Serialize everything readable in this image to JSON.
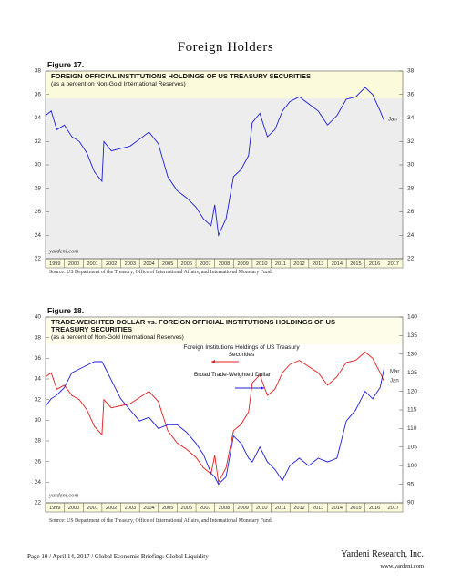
{
  "title": "Foreign Holders",
  "footer": {
    "left": "Page 10 / April 14, 2017 / Global Economic Briefing: Global Liquidity",
    "company": "Yardeni Research, Inc.",
    "url": "www.yardeni.com"
  },
  "chart_data": [
    {
      "type": "line",
      "label": "Figure 17.",
      "title": "FOREIGN OFFICIAL INSTITUTIONS HOLDINGS OF US TREASURY SECURITIES",
      "subtitle": "(as a percent on Non-Gold International Reserves)",
      "x": [
        1999.0,
        1999.3,
        1999.6,
        2000.0,
        2000.4,
        2000.8,
        2001.2,
        2001.6,
        2002.0,
        2002.1,
        2002.5,
        2003.0,
        2003.5,
        2004.0,
        2004.5,
        2005.0,
        2005.5,
        2006.0,
        2006.5,
        2007.0,
        2007.4,
        2007.8,
        2008.0,
        2008.2,
        2008.6,
        2009.0,
        2009.4,
        2009.8,
        2010.0,
        2010.4,
        2010.8,
        2011.2,
        2011.6,
        2012.0,
        2012.5,
        2013.0,
        2013.5,
        2014.0,
        2014.5,
        2015.0,
        2015.5,
        2016.0,
        2016.4,
        2016.8,
        2017.0
      ],
      "series": [
        {
          "color": "#1f1fd6",
          "values": [
            34.2,
            34.6,
            33.0,
            33.4,
            32.4,
            32.0,
            31.0,
            29.4,
            28.6,
            32.0,
            31.2,
            31.4,
            31.6,
            32.2,
            32.8,
            31.8,
            29.0,
            27.8,
            27.2,
            26.4,
            25.4,
            24.8,
            26.6,
            24.0,
            25.4,
            29.0,
            29.6,
            30.8,
            33.6,
            34.4,
            32.4,
            33.0,
            34.6,
            35.4,
            35.8,
            35.2,
            34.6,
            33.4,
            34.2,
            35.6,
            35.8,
            36.6,
            36.0,
            34.6,
            33.8
          ]
        }
      ],
      "xlim": [
        1999,
        2018
      ],
      "xticks": [
        1999,
        2000,
        2001,
        2002,
        2003,
        2004,
        2005,
        2006,
        2007,
        2008,
        2009,
        2010,
        2011,
        2012,
        2013,
        2014,
        2015,
        2016,
        2017
      ],
      "ylim": [
        22,
        38
      ],
      "yticks": [
        22,
        24,
        26,
        28,
        30,
        32,
        34,
        36,
        38
      ],
      "annotations": [
        "yardeni.com",
        "Jan"
      ],
      "source": "Source: US Department of the Treasury, Office of International Affairs, and International Monetary Fund."
    },
    {
      "type": "line",
      "label": "Figure 18.",
      "title": "TRADE-WEIGHTED DOLLAR vs. FOREIGN OFFICIAL INSTITUTIONS HOLDINGS OF US TREASURY SECURITIES",
      "subtitle": "(as a percent of Non-Gold International Reserves)",
      "x": [
        1999.0,
        1999.3,
        1999.6,
        2000.0,
        2000.4,
        2000.8,
        2001.2,
        2001.6,
        2002.0,
        2002.1,
        2002.5,
        2003.0,
        2003.5,
        2004.0,
        2004.5,
        2005.0,
        2005.5,
        2006.0,
        2006.5,
        2007.0,
        2007.4,
        2007.8,
        2008.0,
        2008.2,
        2008.6,
        2009.0,
        2009.4,
        2009.8,
        2010.0,
        2010.4,
        2010.8,
        2011.2,
        2011.6,
        2012.0,
        2012.5,
        2013.0,
        2013.5,
        2014.0,
        2014.5,
        2015.0,
        2015.5,
        2016.0,
        2016.4,
        2016.8,
        2017.0
      ],
      "series": [
        {
          "name": "Foreign Institutions Holdings of US Treasury Securities",
          "color": "#e02020",
          "values": [
            34.2,
            34.6,
            33.0,
            33.4,
            32.4,
            32.0,
            31.0,
            29.4,
            28.6,
            32.0,
            31.2,
            31.4,
            31.6,
            32.2,
            32.8,
            31.8,
            29.0,
            27.8,
            27.2,
            26.4,
            25.4,
            24.8,
            26.6,
            24.0,
            25.4,
            29.0,
            29.6,
            30.8,
            33.6,
            34.4,
            32.4,
            33.0,
            34.6,
            35.4,
            35.8,
            35.2,
            34.6,
            33.4,
            34.2,
            35.6,
            35.8,
            36.6,
            36.0,
            34.6,
            33.8
          ]
        },
        {
          "name": "Broad Trade-Weighted Dollar",
          "color": "#1f1fd6",
          "axis": "y2",
          "values": [
            116,
            118,
            119,
            121,
            125,
            126,
            127,
            128,
            128,
            127,
            123,
            118,
            115,
            112,
            113,
            110,
            111,
            111,
            109,
            106,
            103,
            98,
            97,
            95,
            97,
            108,
            106,
            102,
            101,
            105,
            101,
            99,
            96,
            100,
            102,
            100,
            102,
            101,
            102,
            112,
            115,
            120,
            118,
            121,
            126
          ]
        }
      ],
      "xlim": [
        1999,
        2018
      ],
      "xticks": [
        1999,
        2000,
        2001,
        2002,
        2003,
        2004,
        2005,
        2006,
        2007,
        2008,
        2009,
        2010,
        2011,
        2012,
        2013,
        2014,
        2015,
        2016,
        2017
      ],
      "ylim": [
        22,
        40
      ],
      "yticks": [
        22,
        24,
        26,
        28,
        30,
        32,
        34,
        36,
        38,
        40
      ],
      "y2lim": [
        90,
        140
      ],
      "y2ticks": [
        90,
        95,
        100,
        105,
        110,
        115,
        120,
        125,
        130,
        135,
        140
      ],
      "annotations": [
        "yardeni.com",
        "Mar",
        "Jan"
      ],
      "source": "Source: US Department of the Treasury, Office of International Affairs, and International Monetary Fund."
    }
  ]
}
